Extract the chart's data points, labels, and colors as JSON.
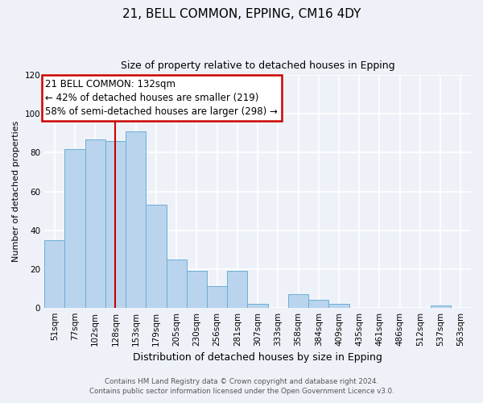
{
  "title": "21, BELL COMMON, EPPING, CM16 4DY",
  "subtitle": "Size of property relative to detached houses in Epping",
  "xlabel": "Distribution of detached houses by size in Epping",
  "ylabel": "Number of detached properties",
  "bar_labels": [
    "51sqm",
    "77sqm",
    "102sqm",
    "128sqm",
    "153sqm",
    "179sqm",
    "205sqm",
    "230sqm",
    "256sqm",
    "281sqm",
    "307sqm",
    "333sqm",
    "358sqm",
    "384sqm",
    "409sqm",
    "435sqm",
    "461sqm",
    "486sqm",
    "512sqm",
    "537sqm",
    "563sqm"
  ],
  "bar_values": [
    35,
    82,
    87,
    86,
    91,
    53,
    25,
    19,
    11,
    19,
    2,
    0,
    7,
    4,
    2,
    0,
    0,
    0,
    0,
    1,
    0
  ],
  "bar_color": "#bad4ed",
  "bar_edge_color": "#6aaed6",
  "vline_x": 3,
  "vline_color": "#cc0000",
  "annotation_title": "21 BELL COMMON: 132sqm",
  "annotation_line1": "← 42% of detached houses are smaller (219)",
  "annotation_line2": "58% of semi-detached houses are larger (298) →",
  "annotation_box_edge": "#cc0000",
  "ylim": [
    0,
    120
  ],
  "yticks": [
    0,
    20,
    40,
    60,
    80,
    100,
    120
  ],
  "footnote1": "Contains HM Land Registry data © Crown copyright and database right 2024.",
  "footnote2": "Contains public sector information licensed under the Open Government Licence v3.0.",
  "background_color": "#eef2f8",
  "grid_color": "#ffffff",
  "title_fontsize": 11,
  "subtitle_fontsize": 9,
  "ylabel_fontsize": 8,
  "xlabel_fontsize": 9,
  "tick_fontsize": 7.5,
  "annot_fontsize": 8.5
}
